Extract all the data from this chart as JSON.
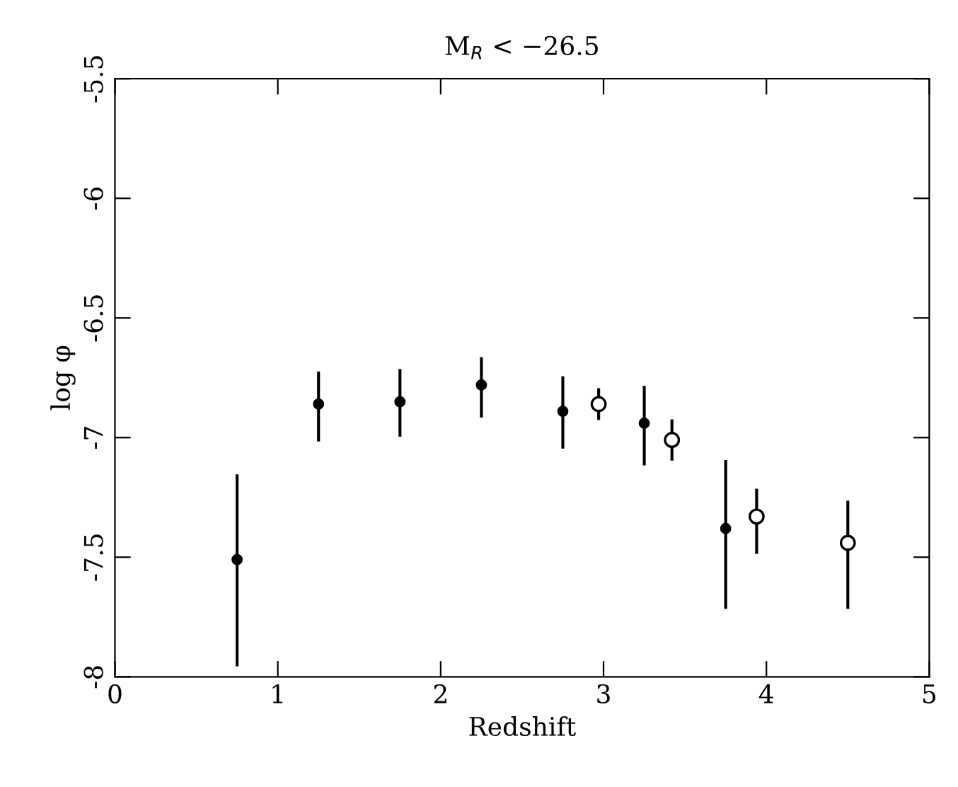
{
  "chart_data": {
    "type": "scatter",
    "title": "M$_{R}$ < −26.5",
    "xlabel": "Redshift",
    "ylabel": "log φ",
    "xlim": [
      0,
      5
    ],
    "xticks": [
      0,
      1,
      2,
      3,
      4,
      5
    ],
    "ylim": [
      -8,
      -5.5
    ],
    "yticks": [
      -8,
      -7.5,
      -7,
      -6.5,
      -6,
      -5.5
    ],
    "grid": false,
    "marker": "circle",
    "series": [
      {
        "color": "#000000",
        "x": [
          0.75,
          1.25,
          1.75,
          2.25,
          2.75,
          3.25,
          3.75
        ],
        "values": [
          -7.51,
          -6.86,
          -6.85,
          -6.78,
          -6.89,
          -6.94,
          -7.38
        ],
        "errors": [
          [
            -7.95,
            -7.16
          ],
          [
            -7.01,
            -6.73
          ],
          [
            -6.99,
            -6.72
          ],
          [
            -6.91,
            -6.67
          ],
          [
            -7.04,
            -6.75
          ],
          [
            -7.11,
            -6.79
          ],
          [
            -7.71,
            -7.1
          ]
        ]
      },
      {
        "color": "#000000",
        "x": [
          2.97,
          3.42,
          3.94,
          4.5
        ],
        "values": [
          -6.86,
          -7.01,
          -7.33,
          -7.44
        ],
        "errors": [
          [
            -6.92,
            -6.8
          ],
          [
            -7.09,
            -6.93
          ],
          [
            -7.48,
            -7.22
          ],
          [
            -7.71,
            -7.27
          ]
        ]
      }
    ]
  }
}
